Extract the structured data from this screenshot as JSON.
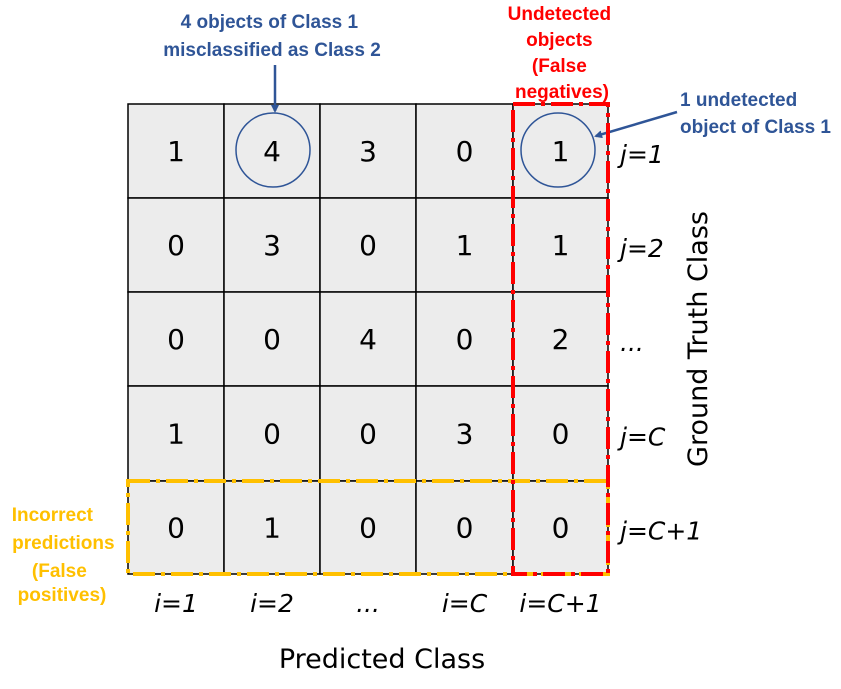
{
  "matrix": {
    "rows": [
      [
        1,
        4,
        3,
        0,
        1
      ],
      [
        0,
        3,
        0,
        1,
        1
      ],
      [
        0,
        0,
        4,
        0,
        2
      ],
      [
        1,
        0,
        0,
        3,
        0
      ],
      [
        0,
        1,
        0,
        0,
        0
      ]
    ],
    "column_labels": [
      "i=1",
      "i=2",
      "...",
      "i=C",
      "i=C+1"
    ],
    "row_labels": [
      "j=1",
      "j=2",
      "...",
      "j=C",
      "j=C+1"
    ],
    "x_axis_title": "Predicted Class",
    "y_axis_title": "Ground Truth Class",
    "cell_fill": "#ececec"
  },
  "annotations": {
    "misclassified": {
      "lines": [
        "4 objects of Class 1",
        "misclassified as Class 2"
      ],
      "color": "#2f5597"
    },
    "undetected_one": {
      "lines": [
        "1 undetected",
        "object of Class 1"
      ],
      "color": "#2f5597"
    },
    "false_negatives": {
      "lines": [
        "Undetected",
        "objects",
        "(False",
        "negatives)"
      ],
      "color": "#ff0000"
    },
    "false_positives": {
      "lines": [
        "Incorrect",
        "predictions",
        "(False",
        "positives)"
      ],
      "color": "#ffc000"
    }
  }
}
